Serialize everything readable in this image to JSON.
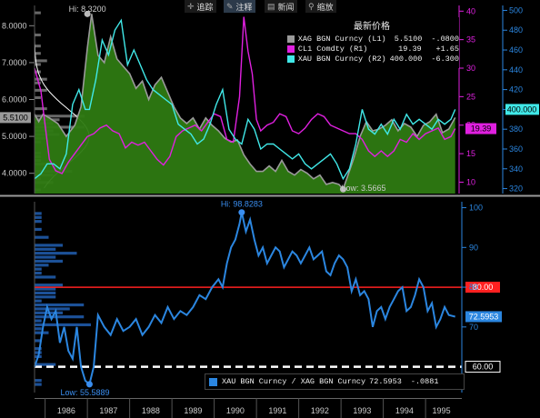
{
  "toolbar": [
    {
      "icon": "crosshair-icon",
      "glyph": "✛",
      "label": "追踪"
    },
    {
      "icon": "pen-icon",
      "glyph": "✎",
      "label": "注释"
    },
    {
      "icon": "news-icon",
      "glyph": "▤",
      "label": "新闻"
    },
    {
      "icon": "magnifier-icon",
      "glyph": "⚲",
      "label": "缩放"
    }
  ],
  "legend_top": {
    "header": "最新价格",
    "rows": [
      {
        "name": "XAG BGN Curncy  (L1)",
        "value": "5.5100",
        "change": "-.0800",
        "color": "#9a9a9a"
      },
      {
        "name": "CL1 Comdty  (R1)",
        "value": "19.39",
        "change": "+1.65",
        "color": "#e020e0"
      },
      {
        "name": "XAU BGN Curncy  (R2)",
        "value": "400.000",
        "change": "-6.300",
        "color": "#40e8e8"
      }
    ]
  },
  "legend_bottom": {
    "name": "XAU BGN Curncy / XAG BGN Curncy",
    "value": "72.5953",
    "change": "-.0881",
    "color": "#2b86e0"
  },
  "chart_data": [
    {
      "type": "line",
      "x_ticks": [
        "1986",
        "1987",
        "1988",
        "1989",
        "1990",
        "1991",
        "1992",
        "1993",
        "1994",
        "1995"
      ],
      "axes": {
        "left_L1": {
          "ticks": [
            4.0,
            5.0,
            6.0,
            7.0,
            8.0
          ],
          "tick_labels": [
            "4.0000",
            "5.0000",
            "6.0000",
            "7.0000",
            "8.0000"
          ],
          "range": [
            3.45,
            8.55
          ],
          "color": "#cccccc",
          "last_value_label": "5.5100"
        },
        "right_R1": {
          "ticks": [
            10,
            15,
            20,
            25,
            30,
            35,
            40
          ],
          "range": [
            8,
            41
          ],
          "color": "#e020e0",
          "last_value_label": "19.39"
        },
        "right_R2": {
          "ticks": [
            320,
            340,
            360,
            380,
            400,
            420,
            440,
            460,
            480,
            500
          ],
          "range": [
            315,
            505
          ],
          "color": "#2b86e0",
          "last_value_label": "400.000"
        }
      },
      "annotations": [
        {
          "text": "Hi: 8.3200",
          "x": 1987.0,
          "y": 8.32
        },
        {
          "text": "Low: 3.5665",
          "x": 1993.05,
          "y": 3.5665
        }
      ],
      "series": [
        {
          "name": "XAG BGN Curncy",
          "axis": "L1",
          "color": "#9a9a9a",
          "fill": "#2e7a12",
          "x": [
            1985.75,
            1985.85,
            1985.95,
            1986.1,
            1986.3,
            1986.5,
            1986.7,
            1986.85,
            1987.0,
            1987.1,
            1987.25,
            1987.4,
            1987.55,
            1987.7,
            1987.85,
            1988.0,
            1988.15,
            1988.3,
            1988.45,
            1988.6,
            1988.75,
            1988.9,
            1989.05,
            1989.2,
            1989.35,
            1989.5,
            1989.65,
            1989.8,
            1989.95,
            1990.1,
            1990.25,
            1990.4,
            1990.55,
            1990.7,
            1990.85,
            1991.0,
            1991.15,
            1991.3,
            1991.45,
            1991.6,
            1991.75,
            1991.9,
            1992.05,
            1992.2,
            1992.35,
            1992.5,
            1992.65,
            1992.8,
            1992.95,
            1993.05,
            1993.15,
            1993.3,
            1993.45,
            1993.6,
            1993.75,
            1993.9,
            1994.05,
            1994.2,
            1994.35,
            1994.5,
            1994.65,
            1994.8,
            1994.95,
            1995.1,
            1995.25,
            1995.4,
            1995.55,
            1995.7
          ],
          "y": [
            5.6,
            5.4,
            5.6,
            5.5,
            5.35,
            5.0,
            5.3,
            5.8,
            7.4,
            8.32,
            7.2,
            7.0,
            7.7,
            7.1,
            6.9,
            6.7,
            6.3,
            6.5,
            6.0,
            6.4,
            6.6,
            6.2,
            5.8,
            5.5,
            5.35,
            5.5,
            5.2,
            5.5,
            5.3,
            5.15,
            4.95,
            4.85,
            4.9,
            4.5,
            4.25,
            4.05,
            4.05,
            4.2,
            4.05,
            4.35,
            4.05,
            3.95,
            4.1,
            4.0,
            3.85,
            3.95,
            3.7,
            3.75,
            3.7,
            3.57,
            3.9,
            4.4,
            5.0,
            5.4,
            5.15,
            5.2,
            5.3,
            5.45,
            5.15,
            5.35,
            5.25,
            5.0,
            5.3,
            5.4,
            5.6,
            5.1,
            5.2,
            5.51
          ]
        },
        {
          "name": "CL1 Comdty",
          "axis": "R1",
          "color": "#e020e0",
          "x": [
            1985.75,
            1985.9,
            1986.1,
            1986.25,
            1986.4,
            1986.55,
            1986.7,
            1986.85,
            1987.0,
            1987.15,
            1987.3,
            1987.45,
            1987.6,
            1987.75,
            1987.9,
            1988.05,
            1988.2,
            1988.35,
            1988.5,
            1988.65,
            1988.8,
            1988.95,
            1989.1,
            1989.25,
            1989.4,
            1989.55,
            1989.7,
            1989.85,
            1990.0,
            1990.15,
            1990.3,
            1990.45,
            1990.6,
            1990.7,
            1990.8,
            1990.9,
            1991.0,
            1991.1,
            1991.25,
            1991.4,
            1991.55,
            1991.7,
            1991.85,
            1992.0,
            1992.15,
            1992.3,
            1992.45,
            1992.6,
            1992.75,
            1992.9,
            1993.05,
            1993.2,
            1993.35,
            1993.5,
            1993.65,
            1993.8,
            1993.95,
            1994.1,
            1994.25,
            1994.4,
            1994.55,
            1994.7,
            1994.85,
            1995.0,
            1995.15,
            1995.3,
            1995.45,
            1995.6,
            1995.7
          ],
          "y": [
            30.0,
            26.0,
            14.0,
            12.0,
            11.5,
            13.5,
            15.0,
            16.5,
            18.0,
            18.5,
            19.5,
            20.0,
            19.0,
            18.5,
            16.0,
            17.0,
            16.5,
            17.0,
            15.5,
            14.0,
            13.0,
            14.5,
            18.0,
            19.0,
            19.5,
            20.0,
            19.0,
            20.5,
            22.0,
            21.5,
            17.5,
            17.0,
            25.0,
            39.0,
            33.0,
            29.0,
            21.0,
            19.0,
            20.0,
            20.5,
            22.0,
            21.5,
            19.0,
            18.5,
            19.5,
            21.0,
            22.0,
            21.5,
            20.0,
            19.5,
            19.0,
            18.5,
            18.5,
            17.5,
            15.5,
            14.5,
            15.5,
            14.5,
            15.5,
            17.5,
            17.0,
            18.5,
            17.5,
            18.5,
            19.0,
            19.5,
            17.5,
            18.0,
            19.39
          ]
        },
        {
          "name": "XAU BGN Curncy",
          "axis": "R2",
          "color": "#40e8e8",
          "x": [
            1985.75,
            1985.9,
            1986.05,
            1986.2,
            1986.35,
            1986.5,
            1986.65,
            1986.8,
            1986.95,
            1987.05,
            1987.2,
            1987.35,
            1987.5,
            1987.65,
            1987.8,
            1987.95,
            1988.1,
            1988.25,
            1988.4,
            1988.55,
            1988.7,
            1988.85,
            1989.0,
            1989.15,
            1989.3,
            1989.45,
            1989.6,
            1989.75,
            1989.9,
            1990.05,
            1990.2,
            1990.35,
            1990.5,
            1990.65,
            1990.8,
            1990.95,
            1991.1,
            1991.25,
            1991.4,
            1991.55,
            1991.7,
            1991.85,
            1992.0,
            1992.15,
            1992.3,
            1992.45,
            1992.6,
            1992.75,
            1992.9,
            1993.05,
            1993.2,
            1993.35,
            1993.5,
            1993.65,
            1993.8,
            1993.95,
            1994.1,
            1994.25,
            1994.4,
            1994.55,
            1994.7,
            1994.85,
            1995.0,
            1995.15,
            1995.3,
            1995.45,
            1995.6,
            1995.7
          ],
          "y": [
            330.0,
            335.0,
            345.0,
            345.0,
            340.0,
            355.0,
            405.0,
            420.0,
            400.0,
            400.0,
            430.0,
            470.0,
            455.0,
            480.0,
            490.0,
            445.0,
            460.0,
            445.0,
            430.0,
            420.0,
            415.0,
            410.0,
            405.0,
            385.0,
            380.0,
            375.0,
            365.0,
            370.0,
            385.0,
            405.0,
            420.0,
            380.0,
            370.0,
            365.0,
            390.0,
            380.0,
            360.0,
            365.0,
            365.0,
            360.0,
            355.0,
            350.0,
            355.0,
            345.0,
            340.0,
            345.0,
            350.0,
            355.0,
            345.0,
            330.0,
            340.0,
            365.0,
            400.0,
            380.0,
            375.0,
            385.0,
            375.0,
            390.0,
            380.0,
            395.0,
            385.0,
            390.0,
            385.0,
            380.0,
            390.0,
            385.0,
            390.0,
            400.0
          ]
        }
      ]
    },
    {
      "type": "line",
      "x_ticks": [
        "1986",
        "1987",
        "1988",
        "1989",
        "1990",
        "1991",
        "1992",
        "1993",
        "1994",
        "1995"
      ],
      "y_ticks": [
        70,
        80,
        90,
        100
      ],
      "y_range": [
        53.5,
        101.5
      ],
      "reference_lines": [
        {
          "value": 80.0,
          "label": "80.00",
          "color": "#ff2020",
          "style": "solid"
        },
        {
          "value": 60.0,
          "label": "60.00",
          "color": "#ffffff",
          "style": "dashed"
        }
      ],
      "annotations": [
        {
          "text": "Hi: 98.8283",
          "x": 1990.65,
          "y": 98.8283
        },
        {
          "text": "Low: 55.5889",
          "x": 1987.05,
          "y": 55.5889
        }
      ],
      "last_value_label": "72.5953",
      "series": [
        {
          "name": "XAU BGN Curncy / XAG BGN Curncy",
          "color": "#2b86e0",
          "x": [
            1985.75,
            1985.85,
            1985.95,
            1986.05,
            1986.15,
            1986.25,
            1986.35,
            1986.45,
            1986.55,
            1986.65,
            1986.75,
            1986.85,
            1986.95,
            1987.05,
            1987.15,
            1987.25,
            1987.4,
            1987.55,
            1987.7,
            1987.85,
            1988.0,
            1988.15,
            1988.3,
            1988.45,
            1988.6,
            1988.75,
            1988.9,
            1989.05,
            1989.2,
            1989.35,
            1989.5,
            1989.65,
            1989.8,
            1989.95,
            1990.1,
            1990.2,
            1990.3,
            1990.4,
            1990.5,
            1990.6,
            1990.65,
            1990.75,
            1990.85,
            1990.95,
            1991.05,
            1991.15,
            1991.25,
            1991.35,
            1991.45,
            1991.55,
            1991.65,
            1991.75,
            1991.85,
            1991.95,
            1992.05,
            1992.15,
            1992.25,
            1992.35,
            1992.45,
            1992.55,
            1992.65,
            1992.75,
            1992.85,
            1992.95,
            1993.05,
            1993.15,
            1993.25,
            1993.35,
            1993.45,
            1993.55,
            1993.65,
            1993.75,
            1993.85,
            1993.95,
            1994.05,
            1994.15,
            1994.25,
            1994.35,
            1994.45,
            1994.55,
            1994.65,
            1994.75,
            1994.85,
            1994.95,
            1995.05,
            1995.15,
            1995.25,
            1995.35,
            1995.45,
            1995.55,
            1995.7
          ],
          "y": [
            60.0,
            63.0,
            70.0,
            75.0,
            72.0,
            74.0,
            66.0,
            70.0,
            64.0,
            62.0,
            70.0,
            60.0,
            56.5,
            55.59,
            60.0,
            73.0,
            70.0,
            68.0,
            72.0,
            69.0,
            70.0,
            72.0,
            68.0,
            70.0,
            73.0,
            71.0,
            75.0,
            72.0,
            74.0,
            73.0,
            75.0,
            78.0,
            77.0,
            80.0,
            82.0,
            80.0,
            86.0,
            90.0,
            92.0,
            96.0,
            98.83,
            94.0,
            97.0,
            92.0,
            88.0,
            90.0,
            86.0,
            88.0,
            90.0,
            89.0,
            85.0,
            87.0,
            89.0,
            88.0,
            86.0,
            88.0,
            90.0,
            87.0,
            88.0,
            89.0,
            84.0,
            83.0,
            86.0,
            88.0,
            87.0,
            85.0,
            79.0,
            82.0,
            78.0,
            79.0,
            77.0,
            70.0,
            74.0,
            75.0,
            72.0,
            75.0,
            77.0,
            79.0,
            80.0,
            74.0,
            75.0,
            78.0,
            82.0,
            80.0,
            74.0,
            76.0,
            70.0,
            72.0,
            75.0,
            73.0,
            72.5953
          ]
        }
      ]
    }
  ]
}
